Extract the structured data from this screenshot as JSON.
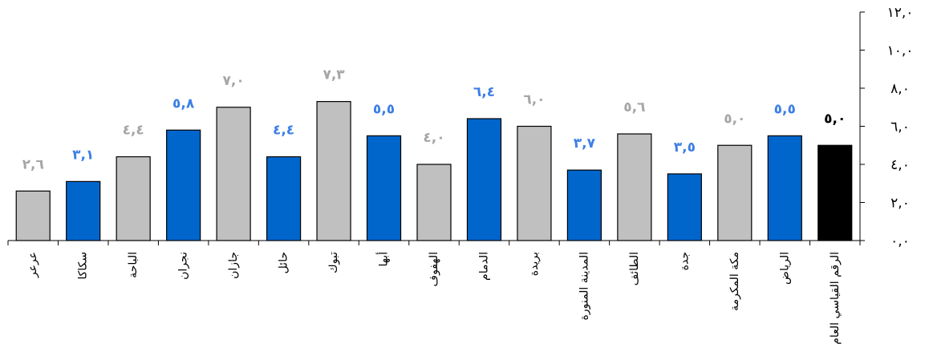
{
  "chart_data": {
    "type": "bar",
    "categories": [
      "عرعر",
      "سكاكا",
      "الباحة",
      "نجران",
      "جازان",
      "حائل",
      "تبوك",
      "أبها",
      "الهفوف",
      "الدمام",
      "بريدة",
      "المدينة المنورة",
      "الطائف",
      "جدة",
      "مكة المكرمة",
      "الرياض",
      "الرقم القياسي العام"
    ],
    "values": [
      2.6,
      3.1,
      4.4,
      5.8,
      7.0,
      4.4,
      7.3,
      5.5,
      4.0,
      6.4,
      6.0,
      3.7,
      5.6,
      3.5,
      5.0,
      5.5,
      5.0
    ],
    "value_labels": [
      "٢,٦",
      "٣,١",
      "٤,٤",
      "٥,٨",
      "٧,٠",
      "٤,٤",
      "٧,٣",
      "٥,٥",
      "٤,٠",
      "٦,٤",
      "٦,٠",
      "٣,٧",
      "٥,٦",
      "٣,٥",
      "٥,٠",
      "٥,٥",
      "٥,٠"
    ],
    "bar_colors": [
      "#c0c0c0",
      "#0066cc",
      "#c0c0c0",
      "#0066cc",
      "#c0c0c0",
      "#0066cc",
      "#c0c0c0",
      "#0066cc",
      "#c0c0c0",
      "#0066cc",
      "#c0c0c0",
      "#0066cc",
      "#c0c0c0",
      "#0066cc",
      "#c0c0c0",
      "#0066cc",
      "#000000"
    ],
    "label_colors": [
      "#a6a6a6",
      "#3d7fe6",
      "#a6a6a6",
      "#3d7fe6",
      "#a6a6a6",
      "#3d7fe6",
      "#a6a6a6",
      "#3d7fe6",
      "#a6a6a6",
      "#3d7fe6",
      "#a6a6a6",
      "#3d7fe6",
      "#a6a6a6",
      "#3d7fe6",
      "#a6a6a6",
      "#3d7fe6",
      "#000000"
    ],
    "ylim": [
      0,
      12
    ],
    "y_ticks": [
      0,
      2,
      4,
      6,
      8,
      10,
      12
    ],
    "y_tick_labels": [
      "٠,٠",
      "٢,٠",
      "٤,٠",
      "٦,٠",
      "٨,٠",
      "١٠,٠",
      "١٢,٠"
    ],
    "y_axis_position": "right",
    "grid": false,
    "title": "",
    "xlabel": "",
    "ylabel": ""
  }
}
